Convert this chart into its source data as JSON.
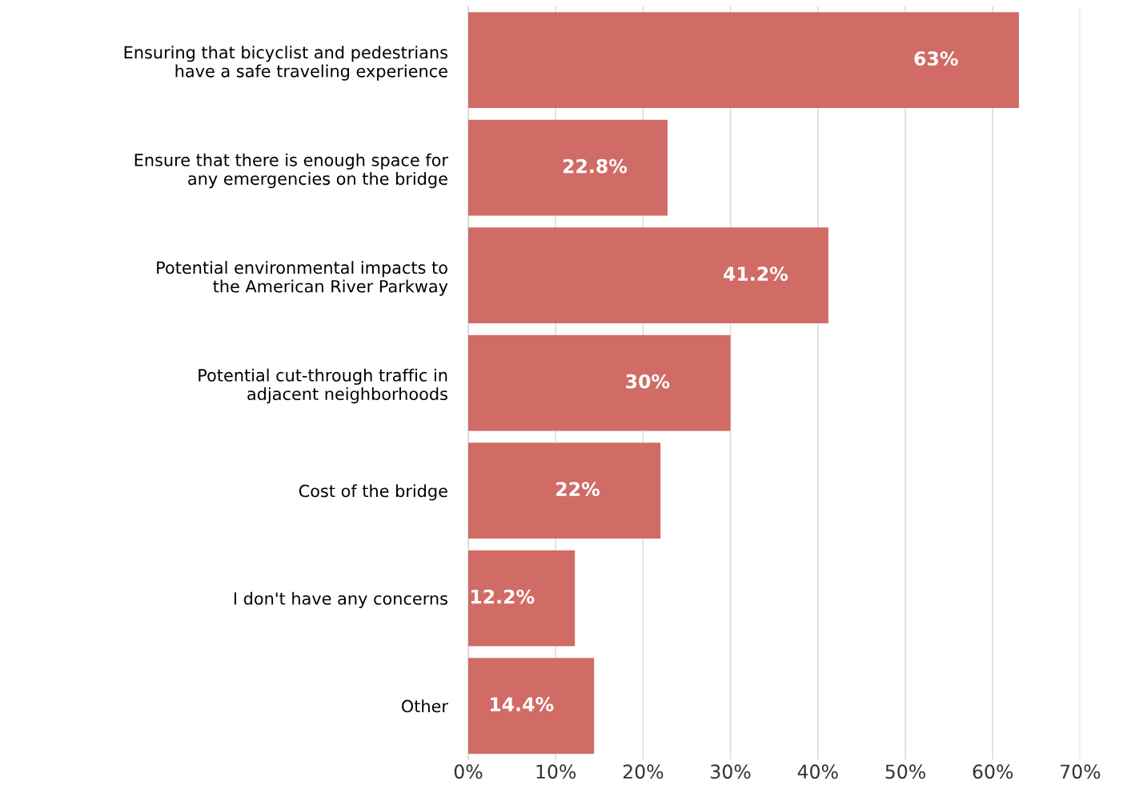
{
  "chart_data": {
    "type": "bar",
    "orientation": "horizontal",
    "categories": [
      "Ensuring that bicyclist and pedestrians\nhave a safe traveling experience",
      "Ensure that there is enough space for\nany emergencies on the bridge",
      "Potential environmental impacts to\nthe American River Parkway",
      "Potential cut-through traffic in\nadjacent neighborhoods",
      "Cost of the bridge",
      "I don't have any concerns",
      "Other"
    ],
    "values": [
      63,
      22.8,
      41.2,
      30,
      22,
      12.2,
      14.4
    ],
    "value_labels": [
      "63%",
      "22.8%",
      "41.2%",
      "30%",
      "22%",
      "12.2%",
      "14.4%"
    ],
    "color": "#d06b66",
    "xlim": [
      0,
      70
    ],
    "xticks": [
      {
        "value": 0,
        "label": "0%"
      },
      {
        "value": 10,
        "label": "10%"
      },
      {
        "value": 20,
        "label": "20%"
      },
      {
        "value": 30,
        "label": "30%"
      },
      {
        "value": 40,
        "label": "40%"
      },
      {
        "value": 50,
        "label": "50%"
      },
      {
        "value": 60,
        "label": "60%"
      },
      {
        "value": 70,
        "label": "70%"
      }
    ],
    "grid": "x"
  }
}
